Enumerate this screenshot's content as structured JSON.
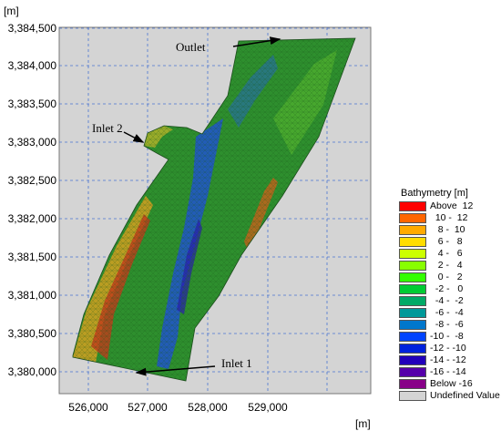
{
  "axes": {
    "y_unit": "[m]",
    "x_unit": "[m]",
    "y_ticks": [
      "3,384,500",
      "3,384,000",
      "3,383,500",
      "3,383,000",
      "3,382,500",
      "3,382,000",
      "3,381,500",
      "3,381,000",
      "3,380,500",
      "3,380,000"
    ],
    "x_ticks": [
      "526,000",
      "527,000",
      "528,000",
      "529,000"
    ],
    "grid": true
  },
  "annotations": {
    "outlet": "Outlet",
    "inlet2": "Inlet 2",
    "inlet1": "Inlet 1"
  },
  "legend": {
    "title": "Bathymetry [m]",
    "items": [
      {
        "label": "Above  12",
        "color": "#ff0000"
      },
      {
        "label": "  10 -  12",
        "color": "#ff6600"
      },
      {
        "label": "   8 -  10",
        "color": "#ffaa00"
      },
      {
        "label": "   6 -   8",
        "color": "#ffdd00"
      },
      {
        "label": "   4 -   6",
        "color": "#ccff00"
      },
      {
        "label": "   2 -   4",
        "color": "#88ff00"
      },
      {
        "label": "   0 -   2",
        "color": "#33ff00"
      },
      {
        "label": "  -2 -   0",
        "color": "#00cc33"
      },
      {
        "label": "  -4 -  -2",
        "color": "#00aa66"
      },
      {
        "label": "  -6 -  -4",
        "color": "#009999"
      },
      {
        "label": "  -8 -  -6",
        "color": "#0077cc"
      },
      {
        "label": "-10 -  -8",
        "color": "#0044ff"
      },
      {
        "label": "-12 - -10",
        "color": "#0022dd"
      },
      {
        "label": "-14 - -12",
        "color": "#2200bb"
      },
      {
        "label": "-16 - -14",
        "color": "#5500aa"
      },
      {
        "label": "Below -16",
        "color": "#880088"
      },
      {
        "label": "Undefined Value",
        "color": "#d4d4d4"
      }
    ]
  }
}
